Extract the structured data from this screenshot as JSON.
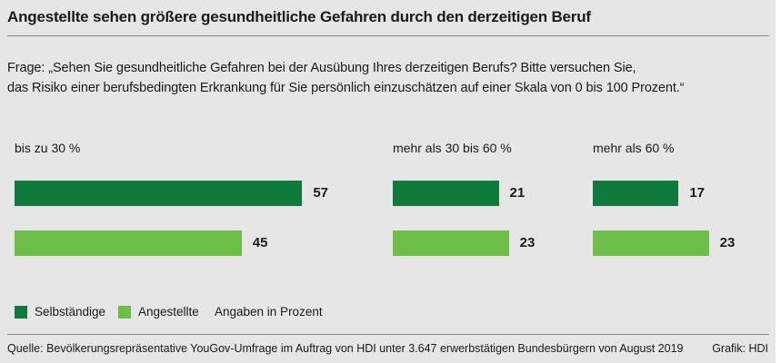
{
  "title": "Angestellte sehen größere gesundheitliche Gefahren durch den derzeitigen Beruf",
  "question": {
    "line1": "Frage: „Sehen Sie gesundheitliche Gefahren bei der Ausübung Ihres derzeitigen Berufs? Bitte versuchen Sie,",
    "line2": "das Risiko einer berufsbedingten Erkrankung für Sie persönlich einzuschätzen auf einer Skala von 0 bis 100 Prozent.“"
  },
  "legend": {
    "series1": "Selbständige",
    "series2": "Angestellte",
    "note": "Angaben in Prozent"
  },
  "footer": {
    "source": "Quelle: Bevölkerungsrepräsentative YouGov-Umfrage im Auftrag von HDI unter 3.647 erwerbstätigen Bundesbürgern von August 2019",
    "credit": "Grafik: HDI"
  },
  "colors": {
    "selbstaendige": "#0e7a3c",
    "angestellte": "#6cc04a"
  },
  "chart_data": {
    "type": "bar",
    "categories": [
      "bis zu 30 %",
      "mehr als 30 bis 60 %",
      "mehr als 60 %"
    ],
    "series": [
      {
        "name": "Selbständige",
        "values": [
          57,
          21,
          17
        ]
      },
      {
        "name": "Angestellte",
        "values": [
          45,
          23,
          23
        ]
      }
    ],
    "orientation": "horizontal",
    "unit": "Prozent"
  }
}
